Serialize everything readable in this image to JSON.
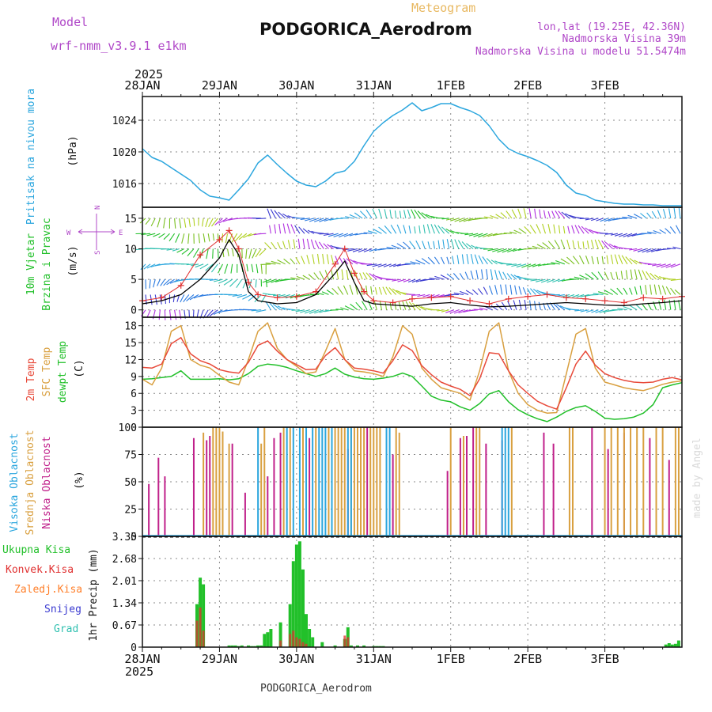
{
  "header": {
    "model_label": "Model",
    "model_name": "wrf-nmm_v3.9.1 e1km",
    "product": "Meteogram",
    "station": "PODGORICA_Aerodrom",
    "location_line1": "lon,lat (19.25E, 42.36N)",
    "location_line2": "Nadmorska Visina 39m",
    "location_line3": "Nadmorska Visina u modelu 51.5474m"
  },
  "footer": {
    "station": "PODGORICA_Aerodrom",
    "credit": "made by Angel"
  },
  "colors": {
    "pressure": "#2ba6de",
    "wind_speed": "#000000",
    "gust": "#e03030",
    "temp2m": "#e84a3a",
    "sfc_temp": "#d9a040",
    "dewpoint": "#22c02a",
    "cloud_high": "#2ba6de",
    "cloud_mid": "#d9a040",
    "cloud_low": "#c0208a",
    "precip_total": "#22c02a",
    "precip_conv": "#e03030",
    "precip_frz": "#ff7f2a",
    "precip_snow": "#3a3ad0",
    "precip_hail": "#30c0b0",
    "grid": "#8a8a8a",
    "axis_title_purple": "#b048c8"
  },
  "chart_data": [
    {
      "type": "line",
      "id": "pressure",
      "title": "",
      "ylabel_left": "Pritisak na nivou mora",
      "ylabel": "(hPa)",
      "x_start_year": "2025",
      "x_tick_labels": [
        "28JAN",
        "29JAN",
        "30JAN",
        "31JAN",
        "1FEB",
        "2FEB",
        "3FEB"
      ],
      "x": [
        0,
        3,
        6,
        9,
        12,
        15,
        18,
        21,
        24,
        27,
        30,
        33,
        36,
        39,
        42,
        45,
        48,
        51,
        54,
        57,
        60,
        63,
        66,
        69,
        72,
        75,
        78,
        81,
        84,
        87,
        90,
        93,
        96,
        99,
        102,
        105,
        108,
        111,
        114,
        117,
        120,
        123,
        126,
        129,
        132,
        135,
        138,
        141,
        144,
        147,
        150,
        153,
        156,
        159,
        162,
        165,
        168
      ],
      "values": [
        1020.4,
        1019.3,
        1018.8,
        1018.0,
        1017.2,
        1016.4,
        1015.2,
        1014.4,
        1014.2,
        1013.9,
        1015.2,
        1016.6,
        1018.6,
        1019.6,
        1018.4,
        1017.3,
        1016.3,
        1015.8,
        1015.6,
        1016.3,
        1017.3,
        1017.6,
        1018.8,
        1020.8,
        1022.6,
        1023.7,
        1024.6,
        1025.3,
        1026.2,
        1025.2,
        1025.6,
        1026.1,
        1026.1,
        1025.6,
        1025.2,
        1024.6,
        1023.3,
        1021.6,
        1020.4,
        1019.8,
        1019.4,
        1018.9,
        1018.3,
        1017.4,
        1015.8,
        1014.8,
        1014.5,
        1013.9,
        1013.7,
        1013.5,
        1013.4,
        1013.4,
        1013.3,
        1013.3,
        1013.2,
        1013.2,
        1013.2
      ],
      "yticks": [
        1016,
        1020,
        1024
      ],
      "ylim": [
        1013,
        1027
      ],
      "grid": true
    },
    {
      "type": "line",
      "id": "wind",
      "ylabel_left": "10m Vjetar",
      "ylabel_left2": "Brzina i Pravac",
      "ylabel": "(m/s)",
      "compass": {
        "north": "N",
        "west": "W",
        "east": "E",
        "south": "S"
      },
      "series": [
        {
          "id": "wind_speed",
          "x": [
            0,
            6,
            12,
            18,
            24,
            27,
            30,
            33,
            36,
            42,
            48,
            54,
            60,
            63,
            66,
            69,
            72,
            78,
            84,
            90,
            96,
            102,
            108,
            114,
            120,
            126,
            132,
            138,
            144,
            150,
            156,
            162,
            168
          ],
          "values": [
            1.0,
            1.5,
            2.5,
            5.0,
            8.5,
            11.5,
            9.0,
            3.0,
            1.5,
            1.0,
            1.2,
            2.5,
            6.0,
            8.0,
            4.5,
            1.5,
            1.0,
            0.8,
            0.6,
            1.0,
            1.2,
            0.8,
            0.5,
            0.6,
            0.8,
            1.0,
            1.2,
            1.0,
            0.8,
            0.7,
            1.0,
            1.2,
            1.5
          ]
        },
        {
          "id": "gust",
          "x": [
            0,
            6,
            12,
            18,
            24,
            27,
            30,
            33,
            36,
            42,
            48,
            54,
            60,
            63,
            66,
            69,
            72,
            78,
            84,
            90,
            96,
            102,
            108,
            114,
            120,
            126,
            132,
            138,
            144,
            150,
            156,
            162,
            168
          ],
          "values": [
            1.5,
            2.0,
            4.0,
            9.0,
            11.5,
            13.0,
            10.0,
            4.5,
            2.5,
            2.0,
            2.2,
            3.0,
            7.5,
            10.0,
            6.0,
            3.0,
            1.5,
            1.2,
            1.8,
            2.0,
            2.2,
            1.5,
            1.0,
            1.8,
            2.2,
            2.5,
            2.0,
            1.8,
            1.5,
            1.2,
            2.0,
            1.8,
            2.2
          ]
        }
      ],
      "barb_levels": [
        0,
        2.5,
        5,
        7.5,
        10,
        12.5,
        15
      ],
      "yticks": [
        0,
        5,
        10,
        15
      ],
      "ylim": [
        -1.2,
        16.8
      ],
      "grid": true
    },
    {
      "type": "line",
      "id": "temperature",
      "ylabel_lefts": [
        "2m Temp",
        "SFC Temp",
        "dewpt Temp"
      ],
      "ylabel": "(C)",
      "x": [
        0,
        3,
        6,
        9,
        12,
        15,
        18,
        21,
        24,
        27,
        30,
        33,
        36,
        39,
        42,
        45,
        48,
        51,
        54,
        57,
        60,
        63,
        66,
        69,
        72,
        75,
        78,
        81,
        84,
        87,
        90,
        93,
        96,
        99,
        102,
        105,
        108,
        111,
        114,
        117,
        120,
        123,
        126,
        129,
        132,
        135,
        138,
        141,
        144,
        147,
        150,
        153,
        156,
        159,
        162,
        165,
        168
      ],
      "series": [
        {
          "name": "2m Temp",
          "values": [
            10.6,
            10.5,
            11.2,
            14.8,
            15.9,
            13.0,
            11.8,
            11.2,
            10.2,
            9.8,
            9.6,
            11.5,
            14.5,
            15.3,
            13.5,
            12.0,
            11.1,
            10.2,
            10.3,
            12.7,
            14.1,
            12.0,
            10.5,
            10.3,
            10.0,
            9.6,
            11.8,
            14.6,
            13.6,
            10.9,
            9.3,
            8.0,
            7.3,
            6.7,
            5.6,
            8.6,
            13.2,
            13.0,
            10.0,
            7.5,
            6.0,
            4.6,
            3.8,
            3.2,
            7.0,
            11.2,
            13.5,
            11.0,
            9.5,
            8.8,
            8.3,
            8.0,
            7.9,
            8.0,
            8.5,
            8.8,
            8.4
          ]
        },
        {
          "name": "SFC Temp",
          "values": [
            8.5,
            7.5,
            10.5,
            17.0,
            18.0,
            12.0,
            11.0,
            10.5,
            9.2,
            8.0,
            7.5,
            12.0,
            17.0,
            18.5,
            14.0,
            12.0,
            10.8,
            9.5,
            9.8,
            13.5,
            17.5,
            12.0,
            10.0,
            9.8,
            9.5,
            9.0,
            12.5,
            18.0,
            16.5,
            10.5,
            8.5,
            7.0,
            6.5,
            6.0,
            4.8,
            10.0,
            17.0,
            18.5,
            10.0,
            6.0,
            4.0,
            3.0,
            2.5,
            2.6,
            9.5,
            16.5,
            17.5,
            10.5,
            8.0,
            7.5,
            7.0,
            6.7,
            6.5,
            7.0,
            7.6,
            8.0,
            8.2
          ]
        },
        {
          "name": "dewpt Temp",
          "values": [
            8.5,
            8.6,
            8.8,
            9.0,
            10.0,
            8.5,
            8.5,
            8.5,
            8.6,
            8.4,
            8.6,
            9.5,
            10.8,
            11.2,
            11.0,
            10.6,
            10.0,
            9.5,
            9.0,
            9.5,
            10.5,
            9.4,
            8.9,
            8.6,
            8.5,
            8.7,
            9.0,
            9.6,
            9.0,
            7.3,
            5.5,
            4.8,
            4.5,
            3.6,
            3.0,
            4.2,
            5.9,
            6.5,
            4.5,
            3.1,
            2.2,
            1.5,
            1.0,
            1.8,
            2.8,
            3.5,
            3.8,
            2.8,
            1.6,
            1.4,
            1.5,
            1.8,
            2.5,
            4.0,
            7.0,
            7.5,
            7.9
          ]
        }
      ],
      "yticks": [
        0,
        3,
        6,
        9,
        12,
        15,
        18
      ],
      "ylim": [
        0,
        19.5
      ],
      "grid": true
    },
    {
      "type": "bar",
      "id": "clouds",
      "ylabel_lefts": [
        "Visoka Oblacnost",
        "Srednja Oblacnost",
        "Niska Oblacnost"
      ],
      "ylabel": "(%)",
      "series": [
        {
          "name": "Niska Oblacnost",
          "x": [
            2,
            5,
            7,
            16,
            20,
            21,
            28,
            32,
            39,
            41,
            43,
            52,
            64,
            70,
            78,
            95,
            99,
            101,
            103,
            107,
            112,
            125,
            128,
            140,
            145,
            150,
            158,
            164
          ],
          "values": [
            48,
            72,
            55,
            90,
            88,
            92,
            85,
            40,
            55,
            90,
            95,
            90,
            80,
            100,
            75,
            60,
            90,
            92,
            100,
            85,
            88,
            95,
            85,
            100,
            80,
            95,
            90,
            70
          ]
        },
        {
          "name": "Srednja Oblacnost",
          "x": [
            19,
            22,
            23,
            24,
            25,
            27,
            37,
            38,
            44,
            46,
            50,
            54,
            58,
            60,
            61,
            62,
            63,
            65,
            66,
            67,
            68,
            69,
            71,
            72,
            73,
            74,
            79,
            80,
            96,
            100,
            104,
            105,
            115,
            133,
            134,
            144,
            146,
            148,
            150,
            152,
            154,
            156,
            160,
            162,
            166,
            167
          ],
          "values": [
            95,
            100,
            100,
            100,
            96,
            85,
            85,
            100,
            100,
            100,
            100,
            100,
            100,
            100,
            100,
            100,
            100,
            100,
            100,
            100,
            100,
            100,
            100,
            100,
            100,
            100,
            100,
            95,
            100,
            92,
            100,
            100,
            100,
            100,
            100,
            100,
            100,
            100,
            100,
            100,
            100,
            100,
            100,
            100,
            100,
            100
          ]
        },
        {
          "name": "Visoka Oblacnost",
          "x": [
            36,
            45,
            47,
            49,
            51,
            53,
            55,
            56,
            57,
            59,
            64,
            65,
            76,
            77,
            112,
            113,
            114
          ],
          "values": [
            100,
            100,
            100,
            100,
            100,
            100,
            100,
            100,
            100,
            100,
            100,
            100,
            100,
            100,
            100,
            100,
            100
          ]
        }
      ],
      "yticks": [
        0,
        25,
        50,
        75,
        100
      ],
      "ylim": [
        0,
        100
      ],
      "grid": true
    },
    {
      "type": "bar",
      "id": "precip",
      "legend": [
        "Ukupna Kisa",
        "Konvek.Kisa",
        "Zaledj.Kisa",
        "Snijeg",
        "Grad"
      ],
      "ylabel": "1hr Precip (mm)",
      "series": [
        {
          "name": "Ukupna Kisa",
          "x": [
            17,
            18,
            19,
            27,
            28,
            29,
            30,
            31,
            33,
            34,
            35,
            36,
            37,
            38,
            39,
            40,
            43,
            46,
            47,
            48,
            49,
            50,
            51,
            52,
            53,
            56,
            60,
            63,
            64,
            65,
            67,
            69,
            72,
            73,
            74,
            75,
            163,
            164,
            165,
            166,
            167
          ],
          "values": [
            1.3,
            2.1,
            1.9,
            0.05,
            0.05,
            0.05,
            0.03,
            0.05,
            0.05,
            0.03,
            0.03,
            0.05,
            0.05,
            0.4,
            0.45,
            0.55,
            0.75,
            1.3,
            2.6,
            3.1,
            3.2,
            2.35,
            1.0,
            0.55,
            0.3,
            0.15,
            0.05,
            0.25,
            0.6,
            0.05,
            0.05,
            0.05,
            0.03,
            0.03,
            0.03,
            0.03,
            0.08,
            0.12,
            0.08,
            0.1,
            0.2
          ]
        },
        {
          "name": "Konvek.Kisa",
          "x": [
            17,
            18,
            19,
            43,
            46,
            47,
            48,
            49,
            50,
            51,
            63,
            64
          ],
          "values": [
            0.8,
            1.2,
            0.5,
            0.2,
            0.4,
            0.5,
            0.3,
            0.25,
            0.15,
            0.1,
            0.35,
            0.3
          ]
        }
      ],
      "yticks": [
        0,
        0.67,
        1.34,
        2.01,
        2.68,
        3.35
      ],
      "ytick_labels": [
        "0",
        "0.67",
        "1.34",
        "2.01",
        "2.68",
        "3.35"
      ],
      "ylim": [
        0,
        3.35
      ],
      "x_start_year": "2025",
      "x_tick_labels": [
        "28JAN",
        "29JAN",
        "30JAN",
        "31JAN",
        "1FEB",
        "2FEB",
        "3FEB"
      ],
      "grid": true
    }
  ]
}
